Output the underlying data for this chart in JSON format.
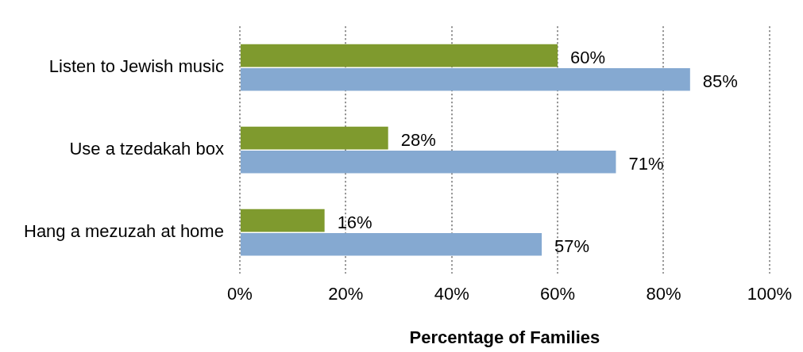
{
  "chart_data": {
    "type": "bar",
    "orientation": "horizontal",
    "xlabel": "Percentage of Families",
    "categories": [
      "Listen to Jewish music",
      "Use a tzedakah box",
      "Hang a mezuzah at home"
    ],
    "series": [
      {
        "color": "#7f9a2e",
        "values": [
          60,
          28,
          16
        ],
        "value_labels": [
          "60%",
          "28%",
          "16%"
        ]
      },
      {
        "color": "#85a9d1",
        "values": [
          85,
          71,
          57
        ],
        "value_labels": [
          "85%",
          "71%",
          "57%"
        ]
      }
    ],
    "xlim": [
      0,
      100
    ],
    "xticks": [
      {
        "value": 0,
        "label": "0%"
      },
      {
        "value": 20,
        "label": "20%"
      },
      {
        "value": 40,
        "label": "40%"
      },
      {
        "value": 60,
        "label": "60%"
      },
      {
        "value": 80,
        "label": "80%"
      },
      {
        "value": 100,
        "label": "100%"
      }
    ],
    "grid": "x",
    "legend": false
  }
}
